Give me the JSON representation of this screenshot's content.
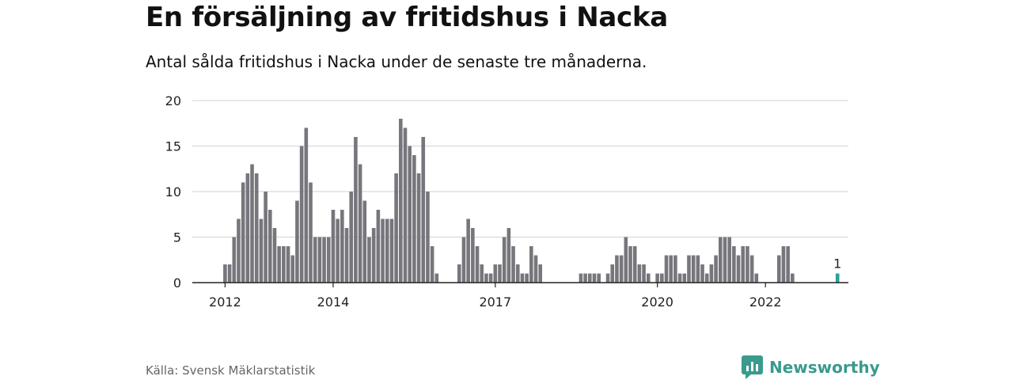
{
  "title": "En försäljning av fritidshus i Nacka",
  "subtitle": "Antal sålda fritidshus i Nacka under de senaste tre månaderna.",
  "source": "Källa: Svensk Mäklarstatistik",
  "brand": {
    "name": "Newsworthy",
    "icon": "newsworthy-logo-icon"
  },
  "colors": {
    "bar": "#77767c",
    "highlight": "#2aa198",
    "grid": "#d9d9d9",
    "axis": "#222222",
    "brand": "#3a9a8c"
  },
  "chart_data": {
    "type": "bar",
    "title": "",
    "xlabel": "",
    "ylabel": "",
    "ylim": [
      0,
      20
    ],
    "yticks": [
      0,
      5,
      10,
      15,
      20
    ],
    "xtick_labels": [
      {
        "label": "2012",
        "index": 0
      },
      {
        "label": "2014",
        "index": 24
      },
      {
        "label": "2017",
        "index": 60
      },
      {
        "label": "2020",
        "index": 96
      },
      {
        "label": "2022",
        "index": 120
      }
    ],
    "start": "2012-01",
    "grid": true,
    "legend": "none",
    "values": [
      2,
      2,
      5,
      7,
      11,
      12,
      13,
      12,
      7,
      10,
      8,
      6,
      4,
      4,
      4,
      3,
      9,
      15,
      17,
      11,
      5,
      5,
      5,
      5,
      8,
      7,
      8,
      6,
      10,
      16,
      13,
      9,
      5,
      6,
      8,
      7,
      7,
      7,
      12,
      18,
      17,
      15,
      14,
      12,
      16,
      10,
      4,
      1,
      0,
      0,
      0,
      0,
      2,
      5,
      7,
      6,
      4,
      2,
      1,
      1,
      2,
      2,
      5,
      6,
      4,
      2,
      1,
      1,
      4,
      3,
      2,
      0,
      0,
      0,
      0,
      0,
      0,
      0,
      0,
      1,
      1,
      1,
      1,
      1,
      0,
      1,
      2,
      3,
      3,
      5,
      4,
      4,
      2,
      2,
      1,
      0,
      1,
      1,
      3,
      3,
      3,
      1,
      1,
      3,
      3,
      3,
      2,
      1,
      2,
      3,
      5,
      5,
      5,
      4,
      3,
      4,
      4,
      3,
      1,
      0,
      0,
      0,
      0,
      3,
      4,
      4,
      1,
      0,
      0,
      0,
      0,
      0,
      0,
      0,
      0,
      0,
      1
    ],
    "highlight": {
      "index": 136,
      "value": 1,
      "label": "1"
    }
  }
}
